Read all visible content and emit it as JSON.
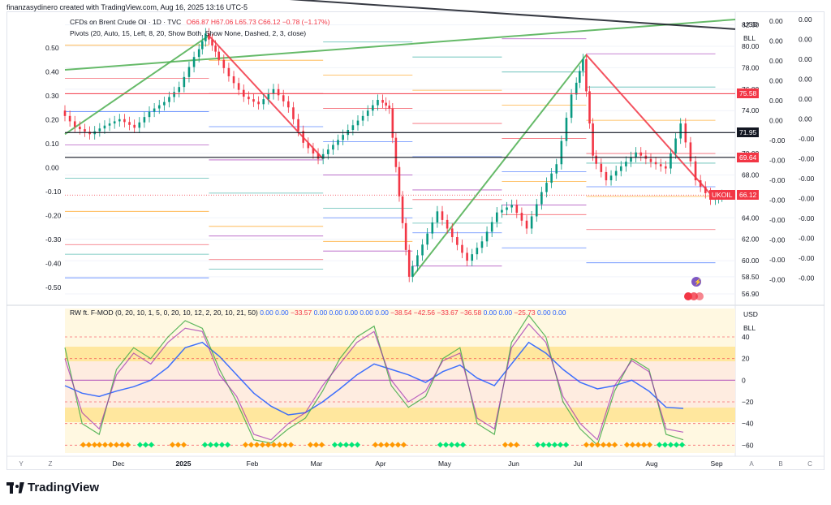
{
  "header": {
    "credit": "finanzasydinero created with TradingView.com, Aug 16, 2025 13:16 UTC-5",
    "symbol_line": "CFDs on Brent Crude Oil · 1D · TVC",
    "ohlc": "O66.87 H67.06 L65.73 C66.12 −0.78 (−1.17%)",
    "pivots_line": "Pivots (20, Auto, 15, Left, 8, 20, Show Both, Show None, Dashed, 2, 3, close)",
    "indicator_line": "RW ft. F-MOD (0, 20, 10, 1, 5, 0, 20, 10, 12, 2, 20, 10, 21, 50)",
    "indicator_values": [
      "0.00",
      "0.00",
      "−33.57",
      "0.00",
      "0.00",
      "0.00",
      "0.00",
      "0.00",
      "−38.54",
      "−42.56",
      "−33.67",
      "−36.58",
      "0.00",
      "0.00",
      "−25.73",
      "0.00",
      "0.00"
    ]
  },
  "price_axis": {
    "currency": "USD",
    "unit": "BLL",
    "ticks": [
      "82.00",
      "80.00",
      "78.00",
      "76.00",
      "74.00",
      "72.00",
      "70.00",
      "68.00",
      "64.00",
      "62.00",
      "60.00",
      "58.50",
      "56.90"
    ],
    "tags": [
      {
        "label": "75.58",
        "color": "#f23645",
        "price": 75.58
      },
      {
        "label": "71.95",
        "color": "#131722",
        "price": 71.95
      },
      {
        "label": "69.64",
        "color": "#f23645",
        "price": 69.64
      },
      {
        "label": "UKOIL",
        "color": "#f23645",
        "price": 66.12
      },
      {
        "label": "66.12",
        "color": "#f23645",
        "price": 66.12
      }
    ]
  },
  "left_axis_values": [
    "0.50",
    "0.40",
    "0.30",
    "0.20",
    "0.10",
    "0.00",
    "-0.10",
    "-0.20",
    "-0.30",
    "-0.40",
    "-0.50"
  ],
  "right_axis_values": [
    "0.00",
    "0.00",
    "0.00",
    "0.00",
    "0.00",
    "0.00",
    "-0.00",
    "-0.00",
    "-0.00",
    "-0.00",
    "-0.00",
    "-0.00",
    "-0.00",
    "-0.00"
  ],
  "osc_axis": {
    "currency": "USD",
    "unit": "BLL",
    "ticks": [
      "40",
      "20",
      "0",
      "−20",
      "−40",
      "−60"
    ]
  },
  "time_axis": {
    "labels": [
      "Dec",
      "2025",
      "Feb",
      "Mar",
      "Apr",
      "May",
      "Jun",
      "Jul",
      "Aug",
      "Sep"
    ],
    "left_buttons": [
      "Y",
      "Z"
    ],
    "right_buttons": [
      "A",
      "B",
      "C"
    ]
  },
  "footer": {
    "brand": "TradingView"
  },
  "chart_data": [
    {
      "type": "line",
      "title": "CFDs on Brent Crude Oil · 1D · TVC",
      "ylabel": "USD",
      "ylim": [
        56.9,
        82.5
      ],
      "x": [
        "Dec",
        "2025",
        "Feb",
        "Mar",
        "Apr",
        "May",
        "Jun",
        "Jul",
        "Aug",
        "Sep"
      ],
      "series": [
        {
          "name": "UKOIL",
          "points": [
            {
              "t": 0,
              "v": 74.0
            },
            {
              "t": 6,
              "v": 72.5
            },
            {
              "t": 12,
              "v": 71.8
            },
            {
              "t": 18,
              "v": 72.6
            },
            {
              "t": 24,
              "v": 73.2
            },
            {
              "t": 30,
              "v": 72.4
            },
            {
              "t": 36,
              "v": 73.9
            },
            {
              "t": 42,
              "v": 74.8
            },
            {
              "t": 48,
              "v": 76.2
            },
            {
              "t": 54,
              "v": 79.0
            },
            {
              "t": 58,
              "v": 81.2
            },
            {
              "t": 62,
              "v": 79.5
            },
            {
              "t": 68,
              "v": 77.2
            },
            {
              "t": 74,
              "v": 75.3
            },
            {
              "t": 80,
              "v": 74.6
            },
            {
              "t": 86,
              "v": 76.0
            },
            {
              "t": 92,
              "v": 74.3
            },
            {
              "t": 98,
              "v": 71.0
            },
            {
              "t": 104,
              "v": 69.5
            },
            {
              "t": 110,
              "v": 70.8
            },
            {
              "t": 116,
              "v": 72.2
            },
            {
              "t": 122,
              "v": 73.5
            },
            {
              "t": 128,
              "v": 75.0
            },
            {
              "t": 132,
              "v": 74.2
            },
            {
              "t": 136,
              "v": 66.0
            },
            {
              "t": 140,
              "v": 58.5
            },
            {
              "t": 146,
              "v": 61.5
            },
            {
              "t": 152,
              "v": 64.6
            },
            {
              "t": 158,
              "v": 62.2
            },
            {
              "t": 164,
              "v": 60.0
            },
            {
              "t": 170,
              "v": 61.8
            },
            {
              "t": 176,
              "v": 64.5
            },
            {
              "t": 182,
              "v": 65.2
            },
            {
              "t": 188,
              "v": 63.0
            },
            {
              "t": 194,
              "v": 66.4
            },
            {
              "t": 200,
              "v": 69.0
            },
            {
              "t": 206,
              "v": 75.5
            },
            {
              "t": 210,
              "v": 78.8
            },
            {
              "t": 214,
              "v": 69.8
            },
            {
              "t": 220,
              "v": 67.5
            },
            {
              "t": 226,
              "v": 68.8
            },
            {
              "t": 232,
              "v": 70.1
            },
            {
              "t": 238,
              "v": 69.2
            },
            {
              "t": 244,
              "v": 68.6
            },
            {
              "t": 250,
              "v": 72.8
            },
            {
              "t": 256,
              "v": 67.5
            },
            {
              "t": 262,
              "v": 65.7
            },
            {
              "t": 266,
              "v": 66.12
            }
          ]
        }
      ],
      "trendlines": [
        {
          "name": "green-channel",
          "color": "#4caf50",
          "from": [
            0,
            77.8
          ],
          "to": [
            270,
            82.5
          ]
        },
        {
          "name": "green-rise-1",
          "color": "#4caf50",
          "from": [
            0,
            71.8
          ],
          "to": [
            58,
            81.0
          ]
        },
        {
          "name": "green-rise-2",
          "color": "#4caf50",
          "from": [
            140,
            58.5
          ],
          "to": [
            210,
            79.2
          ]
        },
        {
          "name": "red-fall-1",
          "color": "#f23645",
          "from": [
            58,
            81.0
          ],
          "to": [
            104,
            69.5
          ]
        },
        {
          "name": "red-fall-2",
          "color": "#f23645",
          "from": [
            210,
            79.2
          ],
          "to": [
            262,
            65.7
          ]
        },
        {
          "name": "black-resistance",
          "color": "#131722",
          "from": [
            0,
            85.8
          ],
          "to": [
            270,
            81.6
          ]
        }
      ]
    },
    {
      "type": "line",
      "title": "RW ft. F-MOD",
      "ylim": [
        -65,
        55
      ],
      "series": [
        {
          "name": "blue",
          "color": "#2962ff",
          "values": [
            -5,
            -12,
            -15,
            -10,
            -6,
            0,
            12,
            30,
            35,
            22,
            5,
            -12,
            -24,
            -32,
            -30,
            -20,
            -8,
            5,
            15,
            10,
            5,
            -2,
            8,
            14,
            2,
            -5,
            15,
            35,
            25,
            10,
            -2,
            -8,
            -5,
            0,
            -10,
            -25,
            -26
          ]
        },
        {
          "name": "green",
          "color": "#4caf50",
          "values": [
            30,
            -40,
            -50,
            10,
            30,
            20,
            40,
            55,
            48,
            10,
            -20,
            -55,
            -58,
            -45,
            -35,
            -10,
            20,
            40,
            50,
            -5,
            -25,
            -15,
            20,
            30,
            -40,
            -50,
            35,
            60,
            40,
            -20,
            -45,
            -60,
            -10,
            20,
            10,
            -50,
            -55
          ]
        },
        {
          "name": "magenta",
          "color": "#9c27b0",
          "values": [
            20,
            -30,
            -45,
            5,
            25,
            15,
            35,
            48,
            45,
            5,
            -15,
            -50,
            -55,
            -40,
            -30,
            -5,
            15,
            35,
            45,
            0,
            -20,
            -10,
            18,
            25,
            -35,
            -45,
            30,
            52,
            35,
            -15,
            -40,
            -55,
            -5,
            18,
            8,
            -45,
            -48
          ]
        }
      ],
      "levels": [
        40,
        20,
        0,
        -20,
        -40,
        -60
      ]
    }
  ]
}
